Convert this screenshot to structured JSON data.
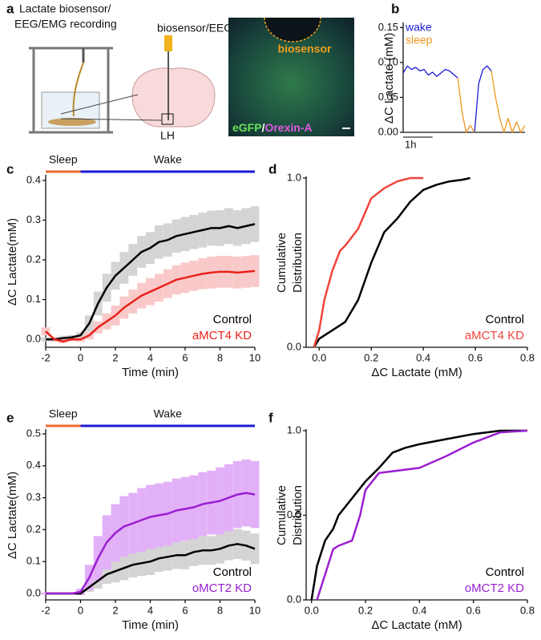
{
  "illustration": {
    "panel": "a",
    "title_lines": [
      "Lactate biosensor/",
      "EEG/EMG recording"
    ],
    "probe_label": "biosensor/EEG",
    "region_label": "LH",
    "image_labels": {
      "biosensor": "biosensor",
      "channel1": "eGFP",
      "separator": "/",
      "channel2": "Orexin-A"
    }
  },
  "chart_data": [
    {
      "type": "line",
      "panel": "b",
      "ylabel": "ΔC Lactate (mM)",
      "ylim": [
        0,
        0.155
      ],
      "yticks": [
        {
          "value": 0,
          "label": "0.00"
        },
        0.05,
        {
          "value": 0.1,
          "label": "0.10"
        },
        0.15
      ],
      "legend": "upper left",
      "scalebar": {
        "label": "1h",
        "length": 7
      },
      "series": [
        {
          "name": "wake",
          "color": "#1a1ad6",
          "values": [
            0.085,
            0.095,
            0.09,
            0.093,
            0.088,
            0.09,
            0.082,
            0.086,
            0.08,
            0.085,
            0.09,
            0.088,
            0.083,
            0.078,
            null,
            null,
            null,
            0.0,
            0.07,
            0.09,
            0.095,
            0.088,
            null,
            null,
            null,
            null,
            null,
            null,
            null,
            null
          ]
        },
        {
          "name": "sleep",
          "color": "#f0961e",
          "values": [
            null,
            null,
            null,
            null,
            null,
            null,
            null,
            null,
            null,
            null,
            null,
            null,
            null,
            0.078,
            0.03,
            0.0,
            0.01,
            0.0,
            null,
            null,
            null,
            0.088,
            0.05,
            0.02,
            0.0,
            0.02,
            0.0,
            0.015,
            0.0,
            0.01
          ]
        }
      ]
    },
    {
      "type": "line",
      "panel": "c",
      "xlabel": "Time (min)",
      "ylabel": "ΔC Lactate(mM)",
      "x": [
        -2,
        -1.5,
        -1,
        -0.5,
        0,
        0.5,
        1,
        1.5,
        2,
        2.5,
        3,
        3.5,
        4,
        4.5,
        5,
        5.5,
        6,
        6.5,
        7,
        7.5,
        8,
        8.5,
        9,
        9.5,
        10
      ],
      "xlim": [
        -2,
        10
      ],
      "xticks": [
        -2,
        0,
        2,
        4,
        6,
        8,
        10
      ],
      "ylim": [
        -0.02,
        0.41
      ],
      "yticks": [
        {
          "value": 0,
          "label": "0.0"
        },
        0.1,
        0.2,
        0.3,
        0.4
      ],
      "state_bars": [
        {
          "label": "Sleep",
          "start": -2,
          "end": 0,
          "color": "#ec6a2c"
        },
        {
          "label": "Wake",
          "start": 0,
          "end": 10,
          "color": "#1a1ad6"
        }
      ],
      "legend": "lower right",
      "series": [
        {
          "name": "Control",
          "color": "#000000",
          "band_color": "#d4d4d4",
          "values": [
            0.0,
            0.0,
            0.003,
            0.005,
            0.01,
            0.04,
            0.09,
            0.13,
            0.16,
            0.18,
            0.2,
            0.22,
            0.23,
            0.245,
            0.25,
            0.26,
            0.265,
            0.27,
            0.275,
            0.28,
            0.28,
            0.285,
            0.28,
            0.285,
            0.29
          ],
          "errors": [
            0.005,
            0.005,
            0.006,
            0.006,
            0.008,
            0.02,
            0.03,
            0.035,
            0.035,
            0.04,
            0.04,
            0.04,
            0.04,
            0.042,
            0.042,
            0.042,
            0.043,
            0.043,
            0.044,
            0.044,
            0.045,
            0.045,
            0.045,
            0.045,
            0.045
          ]
        },
        {
          "name": "aMCT4 KD",
          "color": "#e8221b",
          "band_color": "#f9c9c9",
          "values": [
            0.02,
            0.0,
            -0.005,
            0.0,
            0.0,
            0.01,
            0.03,
            0.045,
            0.06,
            0.08,
            0.095,
            0.11,
            0.12,
            0.13,
            0.14,
            0.15,
            0.155,
            0.16,
            0.165,
            0.168,
            0.17,
            0.17,
            0.168,
            0.17,
            0.172
          ],
          "errors": [
            0.01,
            0.006,
            0.005,
            0.005,
            0.006,
            0.01,
            0.015,
            0.02,
            0.025,
            0.028,
            0.03,
            0.032,
            0.034,
            0.035,
            0.036,
            0.037,
            0.038,
            0.038,
            0.039,
            0.04,
            0.04,
            0.04,
            0.04,
            0.04,
            0.04
          ]
        }
      ]
    },
    {
      "type": "line",
      "panel": "d",
      "xlabel": "ΔC Lactate (mM)",
      "ylabel": [
        "Cumulative",
        "Distribution"
      ],
      "xlim": [
        -0.05,
        0.8
      ],
      "xticks": [
        {
          "value": 0,
          "label": "0.0"
        },
        0.2,
        0.4,
        0.6,
        0.8
      ],
      "ylim": [
        0,
        1
      ],
      "yticks": [
        {
          "value": 0,
          "label": "0.0"
        },
        {
          "value": 1,
          "label": "1.0"
        }
      ],
      "legend": "lower right",
      "series": [
        {
          "name": "Control",
          "color": "#000000",
          "x": [
            -0.02,
            0,
            0.05,
            0.1,
            0.15,
            0.2,
            0.25,
            0.3,
            0.35,
            0.4,
            0.45,
            0.5,
            0.55,
            0.58
          ],
          "values": [
            0,
            0.05,
            0.1,
            0.15,
            0.28,
            0.5,
            0.68,
            0.76,
            0.86,
            0.93,
            0.96,
            0.98,
            0.99,
            1.0
          ]
        },
        {
          "name": "aMCT4 KD",
          "color": "#f0443c",
          "x": [
            -0.02,
            0,
            0.02,
            0.05,
            0.08,
            0.1,
            0.15,
            0.2,
            0.25,
            0.3,
            0.35,
            0.4
          ],
          "values": [
            0,
            0.1,
            0.28,
            0.45,
            0.57,
            0.6,
            0.7,
            0.88,
            0.94,
            0.98,
            1.0,
            1.0
          ]
        }
      ]
    },
    {
      "type": "line",
      "panel": "e",
      "xlabel": "Time (min)",
      "ylabel": "ΔC Lactate(mM)",
      "x": [
        -2,
        -1.5,
        -1,
        -0.5,
        0,
        0.5,
        1,
        1.5,
        2,
        2.5,
        3,
        3.5,
        4,
        4.5,
        5,
        5.5,
        6,
        6.5,
        7,
        7.5,
        8,
        8.5,
        9,
        9.5,
        10
      ],
      "xlim": [
        -2,
        10
      ],
      "xticks": [
        -2,
        0,
        2,
        4,
        6,
        8,
        10
      ],
      "ylim": [
        -0.02,
        0.51
      ],
      "yticks": [
        {
          "value": 0,
          "label": "0.0"
        },
        0.1,
        0.2,
        0.3,
        0.4,
        0.5
      ],
      "state_bars": [
        {
          "label": "Sleep",
          "start": -2,
          "end": 0,
          "color": "#ec6a2c"
        },
        {
          "label": "Wake",
          "start": 0,
          "end": 10,
          "color": "#1a1ad6"
        }
      ],
      "legend": "lower right",
      "series": [
        {
          "name": "Control",
          "color": "#000000",
          "band_color": "#d4d4d4",
          "values": [
            0,
            0,
            0,
            0,
            0,
            0.02,
            0.04,
            0.06,
            0.07,
            0.08,
            0.09,
            0.095,
            0.1,
            0.11,
            0.115,
            0.12,
            0.12,
            0.13,
            0.135,
            0.135,
            0.14,
            0.15,
            0.155,
            0.15,
            0.14
          ],
          "errors": [
            0.003,
            0.003,
            0.003,
            0.003,
            0.005,
            0.015,
            0.025,
            0.03,
            0.035,
            0.038,
            0.04,
            0.04,
            0.042,
            0.042,
            0.043,
            0.043,
            0.044,
            0.044,
            0.045,
            0.045,
            0.046,
            0.046,
            0.047,
            0.047,
            0.048
          ]
        },
        {
          "name": "oMCT2 KD",
          "color": "#9a1fd1",
          "band_color": "#e2b0f7",
          "values": [
            0,
            0,
            0,
            0,
            0.005,
            0.05,
            0.11,
            0.16,
            0.19,
            0.21,
            0.22,
            0.23,
            0.24,
            0.245,
            0.25,
            0.26,
            0.265,
            0.27,
            0.28,
            0.285,
            0.29,
            0.3,
            0.31,
            0.315,
            0.31
          ],
          "errors": [
            0.003,
            0.003,
            0.003,
            0.003,
            0.01,
            0.04,
            0.07,
            0.085,
            0.09,
            0.095,
            0.095,
            0.1,
            0.1,
            0.1,
            0.1,
            0.1,
            0.1,
            0.1,
            0.1,
            0.1,
            0.105,
            0.105,
            0.105,
            0.105,
            0.105
          ]
        }
      ]
    },
    {
      "type": "line",
      "panel": "f",
      "xlabel": "ΔC Lactate (mM)",
      "ylabel": [
        "Cumulative",
        "Distribution"
      ],
      "xlim": [
        -0.02,
        0.8
      ],
      "xticks": [
        {
          "value": 0,
          "label": "0.0"
        },
        0.2,
        0.4,
        0.6,
        0.8
      ],
      "ylim": [
        0,
        1
      ],
      "yticks": [
        {
          "value": 0,
          "label": "0.0"
        },
        {
          "value": 0.5,
          "label": "0.5"
        },
        {
          "value": 1,
          "label": "1.0"
        }
      ],
      "legend": "lower right",
      "series": [
        {
          "name": "Control",
          "color": "#000000",
          "x": [
            0,
            0.02,
            0.05,
            0.08,
            0.1,
            0.15,
            0.2,
            0.25,
            0.3,
            0.35,
            0.4,
            0.5,
            0.6,
            0.7,
            0.8
          ],
          "values": [
            0,
            0.2,
            0.35,
            0.42,
            0.5,
            0.6,
            0.7,
            0.78,
            0.87,
            0.9,
            0.92,
            0.95,
            0.98,
            1.0,
            1.0
          ]
        },
        {
          "name": "oMCT2 KD",
          "color": "#9a1fd1",
          "x": [
            0.02,
            0.05,
            0.08,
            0.1,
            0.15,
            0.18,
            0.2,
            0.25,
            0.3,
            0.4,
            0.5,
            0.6,
            0.7,
            0.8
          ],
          "values": [
            0,
            0.15,
            0.3,
            0.32,
            0.35,
            0.5,
            0.65,
            0.75,
            0.76,
            0.78,
            0.85,
            0.93,
            0.99,
            1.0
          ]
        }
      ]
    }
  ]
}
